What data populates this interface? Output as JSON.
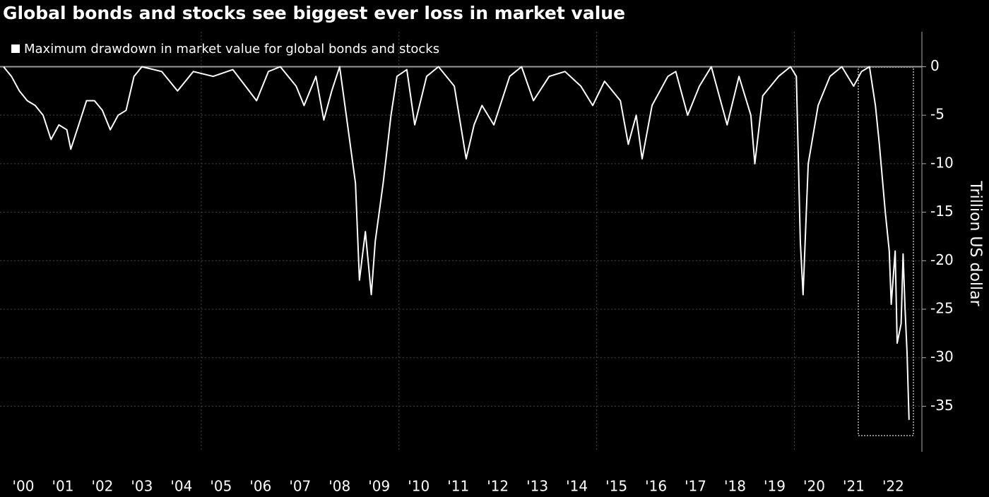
{
  "chart_data": {
    "type": "line",
    "title": "Global bonds and stocks see biggest ever loss in market value",
    "y_axis_label": "Trillion US dollar",
    "series": [
      {
        "name": "Maximum drawdown in market value for global bonds and stocks",
        "color": "#ffffff",
        "x": [
          2000.0,
          2000.2,
          2000.4,
          2000.6,
          2000.8,
          2001.0,
          2001.2,
          2001.4,
          2001.6,
          2001.7,
          2001.9,
          2002.1,
          2002.3,
          2002.5,
          2002.7,
          2002.9,
          2003.1,
          2003.3,
          2003.5,
          2004.0,
          2004.4,
          2004.8,
          2005.3,
          2005.8,
          2006.4,
          2006.7,
          2007.0,
          2007.4,
          2007.6,
          2007.9,
          2008.1,
          2008.3,
          2008.5,
          2008.7,
          2008.9,
          2009.0,
          2009.15,
          2009.3,
          2009.4,
          2009.6,
          2009.8,
          2009.95,
          2010.2,
          2010.4,
          2010.7,
          2011.0,
          2011.4,
          2011.7,
          2011.9,
          2012.1,
          2012.4,
          2012.8,
          2013.1,
          2013.4,
          2013.8,
          2014.2,
          2014.6,
          2014.9,
          2015.2,
          2015.6,
          2015.8,
          2016.0,
          2016.15,
          2016.4,
          2016.8,
          2017.0,
          2017.3,
          2017.6,
          2017.9,
          2018.1,
          2018.3,
          2018.6,
          2018.9,
          2019.0,
          2019.2,
          2019.6,
          2019.9,
          2020.05,
          2020.15,
          2020.22,
          2020.35,
          2020.6,
          2020.9,
          2021.2,
          2021.5,
          2021.7,
          2021.9,
          2022.05,
          2022.15,
          2022.3,
          2022.4,
          2022.45,
          2022.55,
          2022.6,
          2022.7,
          2022.75,
          2022.8,
          2022.85,
          2022.9
        ],
        "values": [
          0,
          -1,
          -2.5,
          -3.5,
          -4,
          -5,
          -7.5,
          -6,
          -6.5,
          -8.5,
          -6,
          -3.5,
          -3.5,
          -4.5,
          -6.5,
          -5,
          -4.5,
          -1,
          0,
          -0.5,
          -2.5,
          -0.5,
          -1,
          -0.3,
          -3.5,
          -0.5,
          0,
          -2,
          -4,
          -1,
          -5.5,
          -2.5,
          0,
          -6,
          -12,
          -22,
          -17,
          -23.5,
          -18,
          -12,
          -5,
          -1,
          -0.3,
          -6,
          -1,
          0,
          -2,
          -9.5,
          -6,
          -4,
          -6,
          -1,
          0,
          -3.5,
          -1,
          -0.5,
          -2,
          -4,
          -1.5,
          -3.5,
          -8,
          -5,
          -9.5,
          -4,
          -1,
          -0.5,
          -5,
          -2,
          0,
          -3,
          -6,
          -1,
          -5,
          -10,
          -3,
          -1,
          0,
          -1,
          -18,
          -23.5,
          -10,
          -4,
          -1,
          0,
          -2,
          -0.5,
          0,
          -4,
          -8,
          -15,
          -19,
          -24.5,
          -19,
          -28.5,
          -26.5,
          -19.3,
          -25,
          -29.5,
          -36.4
        ]
      }
    ],
    "xlim": [
      2000,
      2023.1
    ],
    "xticks": [
      {
        "value": 2000.5,
        "label": "'00"
      },
      {
        "value": 2001.5,
        "label": "'01"
      },
      {
        "value": 2002.5,
        "label": "'02"
      },
      {
        "value": 2003.5,
        "label": "'03"
      },
      {
        "value": 2004.5,
        "label": "'04"
      },
      {
        "value": 2005.5,
        "label": "'05"
      },
      {
        "value": 2006.5,
        "label": "'06"
      },
      {
        "value": 2007.5,
        "label": "'07"
      },
      {
        "value": 2008.5,
        "label": "'08"
      },
      {
        "value": 2009.5,
        "label": "'09"
      },
      {
        "value": 2010.5,
        "label": "'10"
      },
      {
        "value": 2011.5,
        "label": "'11"
      },
      {
        "value": 2012.5,
        "label": "'12"
      },
      {
        "value": 2013.5,
        "label": "'13"
      },
      {
        "value": 2014.5,
        "label": "'14"
      },
      {
        "value": 2015.5,
        "label": "'15"
      },
      {
        "value": 2016.5,
        "label": "'16"
      },
      {
        "value": 2017.5,
        "label": "'17"
      },
      {
        "value": 2018.5,
        "label": "'18"
      },
      {
        "value": 2019.5,
        "label": "'19"
      },
      {
        "value": 2020.5,
        "label": "'20"
      },
      {
        "value": 2021.5,
        "label": "'21"
      },
      {
        "value": 2022.5,
        "label": "'22"
      }
    ],
    "x_gridlines": [
      2005,
      2010,
      2015,
      2020
    ],
    "ylim": [
      -39.7,
      3.6
    ],
    "yticks": [
      0,
      -5,
      -10,
      -15,
      -20,
      -25,
      -30,
      -35
    ],
    "grid": true
  }
}
